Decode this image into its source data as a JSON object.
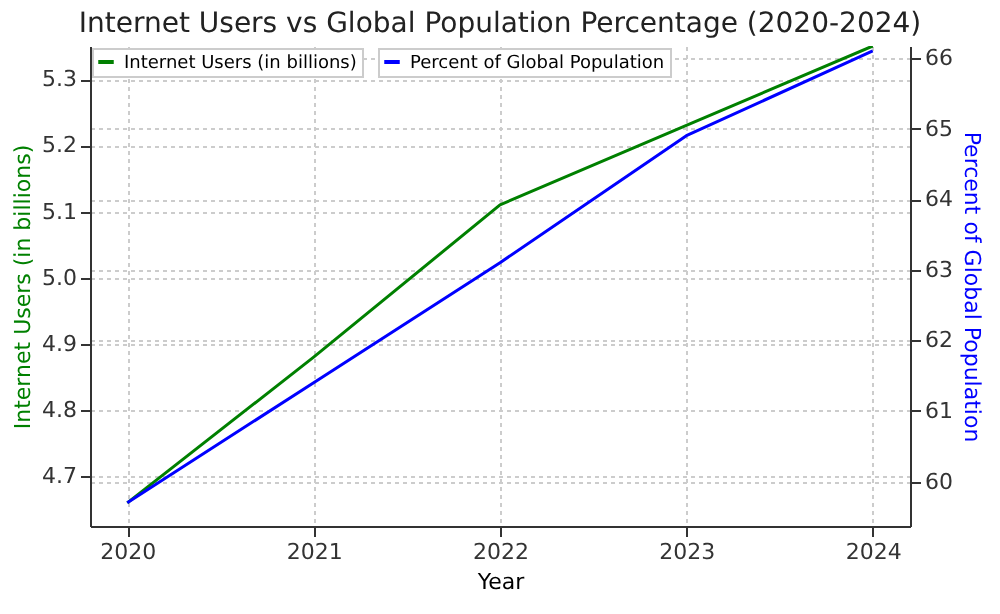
{
  "chart_data": {
    "type": "line",
    "title": "Internet Users vs Global Population Percentage (2020-2024)",
    "xlabel": "Year",
    "ylabel": "Internet Users (in billions)",
    "y2label": "Percent of Global Population",
    "x": [
      2020,
      2021,
      2022,
      2023,
      2024
    ],
    "series": [
      {
        "name": "Internet Users (in billions)",
        "color": "#008000",
        "values": [
          4.66,
          4.88,
          5.11,
          5.23,
          5.35
        ]
      },
      {
        "name": "Percent of Global Population",
        "color": "#0000ff",
        "values": [
          59.7,
          61.4,
          63.1,
          64.9,
          66.1
        ],
        "axis": "y2"
      }
    ],
    "xlim": [
      2019.8,
      2024.2
    ],
    "xticks": [
      2020,
      2021,
      2022,
      2023,
      2024
    ],
    "ylim": [
      4.625,
      5.35
    ],
    "yticks": [
      4.7,
      4.8,
      4.9,
      {
        "value": 5.0,
        "label": "5.0"
      },
      5.1,
      5.2,
      5.3
    ],
    "y2lim": [
      59.37,
      66.17
    ],
    "y2ticks": [
      60,
      61,
      62,
      63,
      64,
      65,
      66
    ],
    "grid": true,
    "legend": "top left",
    "line_style": "solid",
    "marker": "none"
  }
}
